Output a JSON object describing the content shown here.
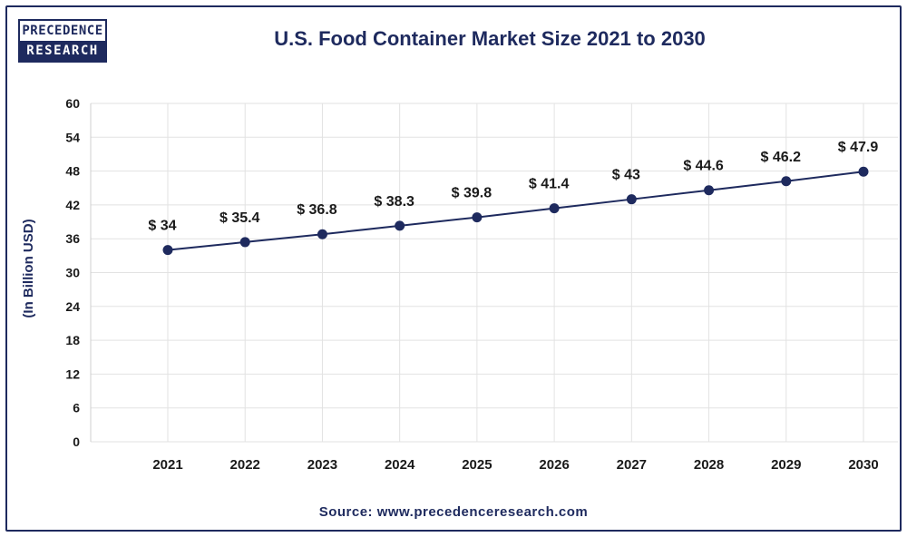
{
  "logo": {
    "line1": "PRECEDENCE",
    "line2": "RESEARCH"
  },
  "source": "Source: www.precedenceresearch.com",
  "colors": {
    "primary": "#1e2a5e",
    "grid": "#e2e2e2",
    "line": "#1e2a5e"
  },
  "chart_data": {
    "type": "line",
    "title": "U.S. Food Container Market Size 2021 to 2030",
    "xlabel": "",
    "ylabel": "(In Billion USD)",
    "categories": [
      "2021",
      "2022",
      "2023",
      "2024",
      "2025",
      "2026",
      "2027",
      "2028",
      "2029",
      "2030"
    ],
    "values": [
      34,
      35.4,
      36.8,
      38.3,
      39.8,
      41.4,
      43,
      44.6,
      46.2,
      47.9
    ],
    "data_labels": [
      "$ 34",
      "$ 35.4",
      "$ 36.8",
      "$ 38.3",
      "$ 39.8",
      "$ 41.4",
      "$ 43",
      "$ 44.6",
      "$ 46.2",
      "$ 47.9"
    ],
    "y_ticks": [
      "0",
      "6",
      "12",
      "18",
      "24",
      "30",
      "36",
      "42",
      "48",
      "54",
      "60"
    ],
    "ylim": [
      0,
      60
    ],
    "grid": true,
    "legend": "none"
  }
}
